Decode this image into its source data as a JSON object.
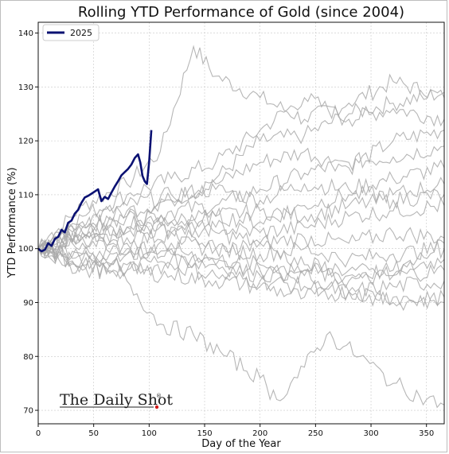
{
  "chart_data": {
    "type": "line",
    "title": "Rolling YTD Performance of Gold (since 2004)",
    "xlabel": "Day of the Year",
    "ylabel": "YTD Performance (%)",
    "xlim": [
      0,
      366
    ],
    "ylim": [
      67.5,
      142
    ],
    "xticks": [
      0,
      50,
      100,
      150,
      200,
      250,
      300,
      350
    ],
    "yticks": [
      70,
      80,
      90,
      100,
      110,
      120,
      130,
      140
    ],
    "grid": true,
    "legend_position": "top-left",
    "highlight_color": "#0a1172",
    "history_color": "#a9a9a9",
    "highlight": {
      "name": "2025",
      "x": [
        0,
        3,
        6,
        9,
        12,
        15,
        18,
        21,
        24,
        27,
        30,
        33,
        36,
        39,
        42,
        45,
        48,
        51,
        54,
        57,
        60,
        63,
        66,
        69,
        72,
        75,
        78,
        81,
        84,
        87,
        90,
        92,
        94,
        96,
        98,
        100,
        102
      ],
      "values": [
        100,
        99.5,
        99.8,
        101,
        100.5,
        101.8,
        102.2,
        103.5,
        103,
        104.8,
        105.2,
        106.5,
        107.2,
        108.5,
        109.5,
        109.8,
        110.2,
        110.6,
        111,
        108.8,
        109.6,
        109.2,
        110.4,
        111.5,
        112.5,
        113.6,
        114.2,
        114.8,
        115.6,
        116.8,
        117.5,
        116,
        113.5,
        112.5,
        112,
        116,
        122
      ]
    },
    "history": [
      {
        "x": [
          0,
          40,
          80,
          110,
          140,
          160,
          200,
          240,
          280,
          320,
          366
        ],
        "values": [
          100,
          108,
          112,
          118,
          137.5,
          132,
          128,
          124,
          127,
          131,
          128
        ]
      },
      {
        "x": [
          0,
          40,
          80,
          120,
          160,
          200,
          240,
          280,
          320,
          366
        ],
        "values": [
          100,
          103,
          104,
          109,
          113,
          120,
          121,
          125,
          127,
          129
        ]
      },
      {
        "x": [
          0,
          40,
          80,
          120,
          160,
          200,
          240,
          280,
          320,
          366
        ],
        "values": [
          100,
          106,
          110,
          113,
          116,
          122,
          128,
          124,
          126,
          124
        ]
      },
      {
        "x": [
          0,
          40,
          80,
          120,
          160,
          200,
          240,
          280,
          320,
          366
        ],
        "values": [
          100,
          104,
          107,
          109,
          112,
          116,
          118,
          115,
          120,
          122
        ]
      },
      {
        "x": [
          0,
          40,
          80,
          120,
          160,
          200,
          240,
          280,
          320,
          366
        ],
        "values": [
          100,
          102,
          104,
          107,
          108,
          111,
          114,
          116,
          117,
          119
        ]
      },
      {
        "x": [
          0,
          40,
          80,
          120,
          160,
          200,
          240,
          280,
          320,
          366
        ],
        "values": [
          100,
          105,
          108,
          110,
          111,
          109,
          112,
          111,
          113,
          115
        ]
      },
      {
        "x": [
          0,
          40,
          80,
          120,
          160,
          200,
          240,
          280,
          320,
          366
        ],
        "values": [
          100,
          101,
          103,
          105,
          106,
          105,
          108,
          110,
          110,
          112
        ]
      },
      {
        "x": [
          0,
          40,
          80,
          120,
          160,
          200,
          240,
          280,
          320,
          366
        ],
        "values": [
          100,
          103,
          106,
          105,
          106,
          107,
          106,
          108,
          109,
          110
        ]
      },
      {
        "x": [
          0,
          40,
          80,
          120,
          160,
          200,
          240,
          280,
          320,
          366
        ],
        "values": [
          100,
          99,
          101,
          103,
          104,
          103,
          104,
          106,
          107,
          108
        ]
      },
      {
        "x": [
          0,
          40,
          80,
          120,
          160,
          200,
          240,
          280,
          320,
          366
        ],
        "values": [
          100,
          102,
          102,
          104,
          103,
          101,
          102,
          101,
          103,
          102
        ]
      },
      {
        "x": [
          0,
          40,
          80,
          120,
          160,
          200,
          240,
          280,
          320,
          366
        ],
        "values": [
          100,
          98,
          99,
          101,
          100,
          99,
          100,
          98,
          99,
          100
        ]
      },
      {
        "x": [
          0,
          40,
          80,
          120,
          160,
          200,
          240,
          280,
          320,
          366
        ],
        "values": [
          100,
          97,
          99,
          100,
          98,
          97,
          96,
          95,
          96,
          98
        ]
      },
      {
        "x": [
          0,
          40,
          80,
          120,
          160,
          200,
          240,
          280,
          320,
          366
        ],
        "values": [
          100,
          96,
          97,
          98,
          97,
          95,
          96,
          94,
          95,
          96
        ]
      },
      {
        "x": [
          0,
          40,
          80,
          120,
          160,
          200,
          240,
          280,
          320,
          366
        ],
        "values": [
          100,
          99,
          96,
          97,
          95,
          94,
          93,
          92,
          93,
          94
        ]
      },
      {
        "x": [
          0,
          40,
          80,
          120,
          160,
          200,
          240,
          280,
          320,
          366
        ],
        "values": [
          100,
          97,
          96,
          95,
          94,
          93,
          91,
          92,
          91,
          90
        ]
      },
      {
        "x": [
          0,
          40,
          80,
          120,
          160,
          200,
          240,
          280,
          320,
          366
        ],
        "values": [
          100,
          102,
          100,
          99,
          97,
          96,
          95,
          92,
          90,
          91
        ]
      },
      {
        "x": [
          0,
          40,
          80,
          120,
          160,
          200,
          240,
          280,
          320,
          366
        ],
        "values": [
          100,
          104,
          106,
          103,
          100,
          101,
          97,
          96,
          95,
          101
        ]
      },
      {
        "x": [
          0,
          40,
          80,
          110,
          140,
          170,
          200,
          215,
          240,
          260,
          290,
          320,
          350,
          366
        ],
        "values": [
          100,
          97,
          94,
          86,
          84,
          80,
          76,
          72,
          78,
          84,
          80,
          75,
          72,
          71
        ]
      }
    ]
  },
  "legend": {
    "label": "2025"
  },
  "watermark": {
    "text": "The Daily Shot",
    "mark": "®"
  }
}
